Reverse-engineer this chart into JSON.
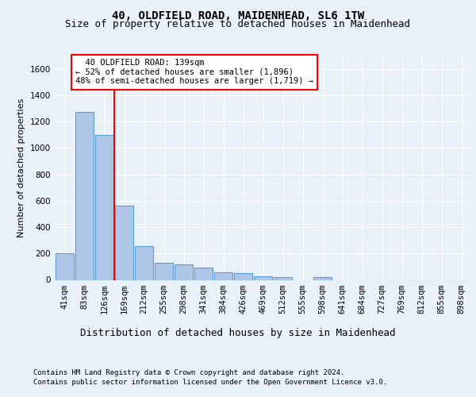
{
  "title1": "40, OLDFIELD ROAD, MAIDENHEAD, SL6 1TW",
  "title2": "Size of property relative to detached houses in Maidenhead",
  "xlabel": "Distribution of detached houses by size in Maidenhead",
  "ylabel": "Number of detached properties",
  "footer1": "Contains HM Land Registry data © Crown copyright and database right 2024.",
  "footer2": "Contains public sector information licensed under the Open Government Licence v3.0.",
  "categories": [
    "41sqm",
    "83sqm",
    "126sqm",
    "169sqm",
    "212sqm",
    "255sqm",
    "298sqm",
    "341sqm",
    "384sqm",
    "426sqm",
    "469sqm",
    "512sqm",
    "555sqm",
    "598sqm",
    "641sqm",
    "684sqm",
    "727sqm",
    "769sqm",
    "812sqm",
    "855sqm",
    "898sqm"
  ],
  "values": [
    200,
    1270,
    1100,
    560,
    255,
    130,
    120,
    95,
    55,
    50,
    30,
    20,
    0,
    20,
    0,
    0,
    0,
    0,
    0,
    0,
    0
  ],
  "bar_color": "#aec6e8",
  "bar_edge_color": "#5a9fd4",
  "bar_edge_width": 0.8,
  "red_line_x": 2.5,
  "annotation_line1": "  40 OLDFIELD ROAD: 139sqm",
  "annotation_line2": "← 52% of detached houses are smaller (1,896)",
  "annotation_line3": "48% of semi-detached houses are larger (1,719) →",
  "annotation_box_color": "white",
  "annotation_box_edge_color": "red",
  "ylim": [
    0,
    1700
  ],
  "yticks": [
    0,
    200,
    400,
    600,
    800,
    1000,
    1200,
    1400,
    1600
  ],
  "bg_color": "#e8f0f8",
  "plot_bg_color": "#e8f0f8",
  "grid_color": "white",
  "title1_fontsize": 10,
  "title2_fontsize": 9,
  "xlabel_fontsize": 9,
  "ylabel_fontsize": 8,
  "tick_fontsize": 7.5,
  "annotation_fontsize": 7.5,
  "footer_fontsize": 6.5
}
